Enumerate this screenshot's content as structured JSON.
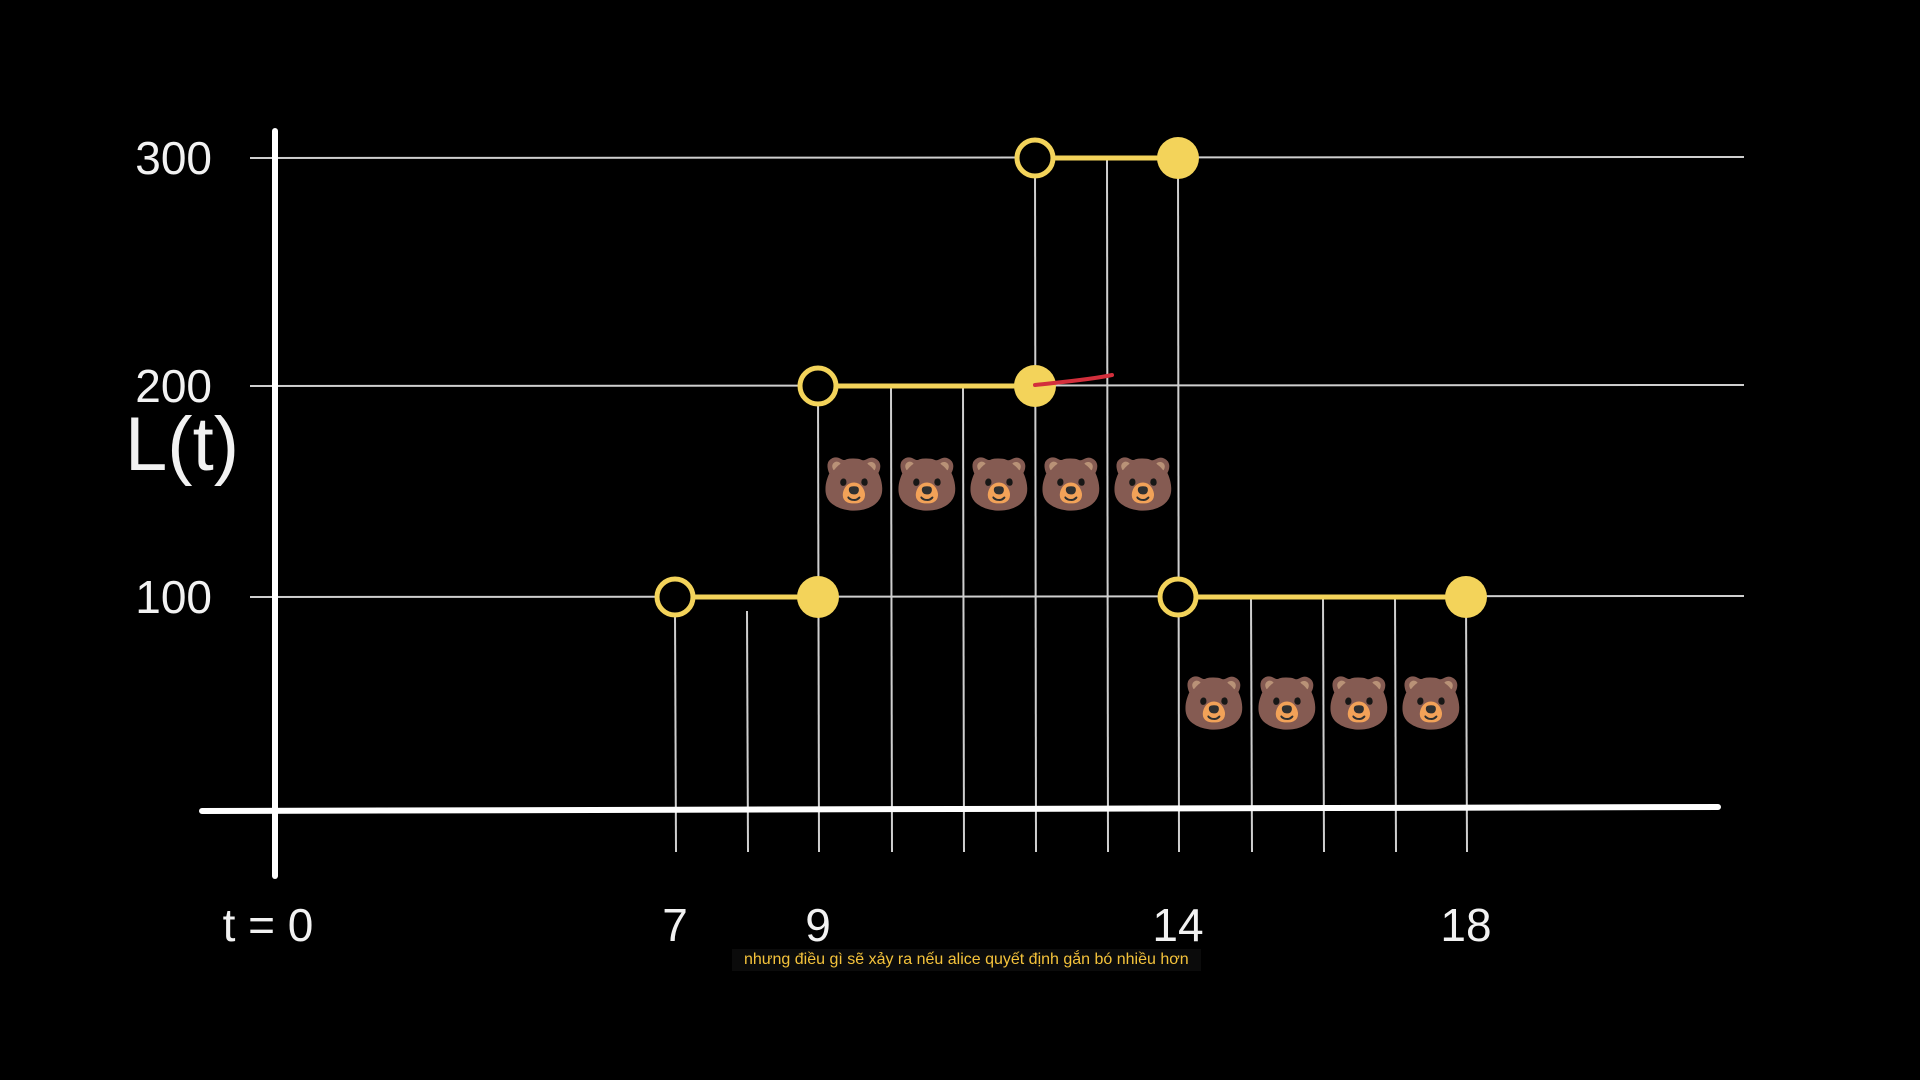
{
  "chart_data": {
    "type": "line",
    "title": "",
    "ylabel": "L(t)",
    "xlabel": "",
    "xlim": [
      0,
      20
    ],
    "ylim": [
      0,
      300
    ],
    "y_ticks": [
      {
        "value": 100,
        "label": "100"
      },
      {
        "value": 200,
        "label": "200"
      },
      {
        "value": 300,
        "label": "300"
      }
    ],
    "x_ticks": [
      {
        "value": 0,
        "label": "t = 0"
      },
      {
        "value": 7,
        "label": "7"
      },
      {
        "value": 9,
        "label": "9"
      },
      {
        "value": 14,
        "label": "14"
      },
      {
        "value": 18,
        "label": "18"
      }
    ],
    "gridlines_y": [
      100,
      200,
      300
    ],
    "vertical_lines_x": [
      7,
      8,
      9,
      10,
      11,
      12,
      13,
      14,
      15,
      16,
      17,
      18
    ],
    "series": [
      {
        "segments": [
          {
            "x_start": 7,
            "x_end": 9,
            "y": 100
          },
          {
            "x_start": 9,
            "x_end": 12,
            "y": 200
          },
          {
            "x_start": 12,
            "x_end": 14,
            "y": 300
          },
          {
            "x_start": 14,
            "x_end": 18,
            "y": 100
          }
        ]
      }
    ],
    "markers": [
      {
        "x": 7,
        "y": 100,
        "style": "open"
      },
      {
        "x": 9,
        "y": 100,
        "style": "filled"
      },
      {
        "x": 9,
        "y": 200,
        "style": "open"
      },
      {
        "x": 12,
        "y": 200,
        "style": "filled"
      },
      {
        "x": 12,
        "y": 300,
        "style": "open"
      },
      {
        "x": 14,
        "y": 300,
        "style": "filled"
      },
      {
        "x": 14,
        "y": 100,
        "style": "open"
      },
      {
        "x": 18,
        "y": 100,
        "style": "filled"
      }
    ],
    "emoji_rows": [
      {
        "level": 0,
        "items": [
          "😀",
          "😀",
          "😀",
          "😀",
          "😀",
          "😀",
          "😀",
          "🐻",
          "🐻",
          "🐻",
          "🐻"
        ],
        "start_x": 7
      },
      {
        "level": 1,
        "items": [
          "🐻",
          "🐻",
          "🐻",
          "🐻",
          "🐻"
        ],
        "start_x": 9
      },
      {
        "level": 2,
        "items": [
          "😀",
          "😀"
        ],
        "start_x": 12
      }
    ],
    "colors": {
      "background": "#000000",
      "axis": "#ffffff",
      "grid": "#cfcfcf",
      "line": "#f3d35a",
      "marker": "#f3d35a",
      "annotation": "#d32f3c"
    }
  },
  "subtitle": {
    "text": "nhưng điều gì sẽ xảy ra nếu alice quyết định gắn bó nhiều hơn"
  }
}
